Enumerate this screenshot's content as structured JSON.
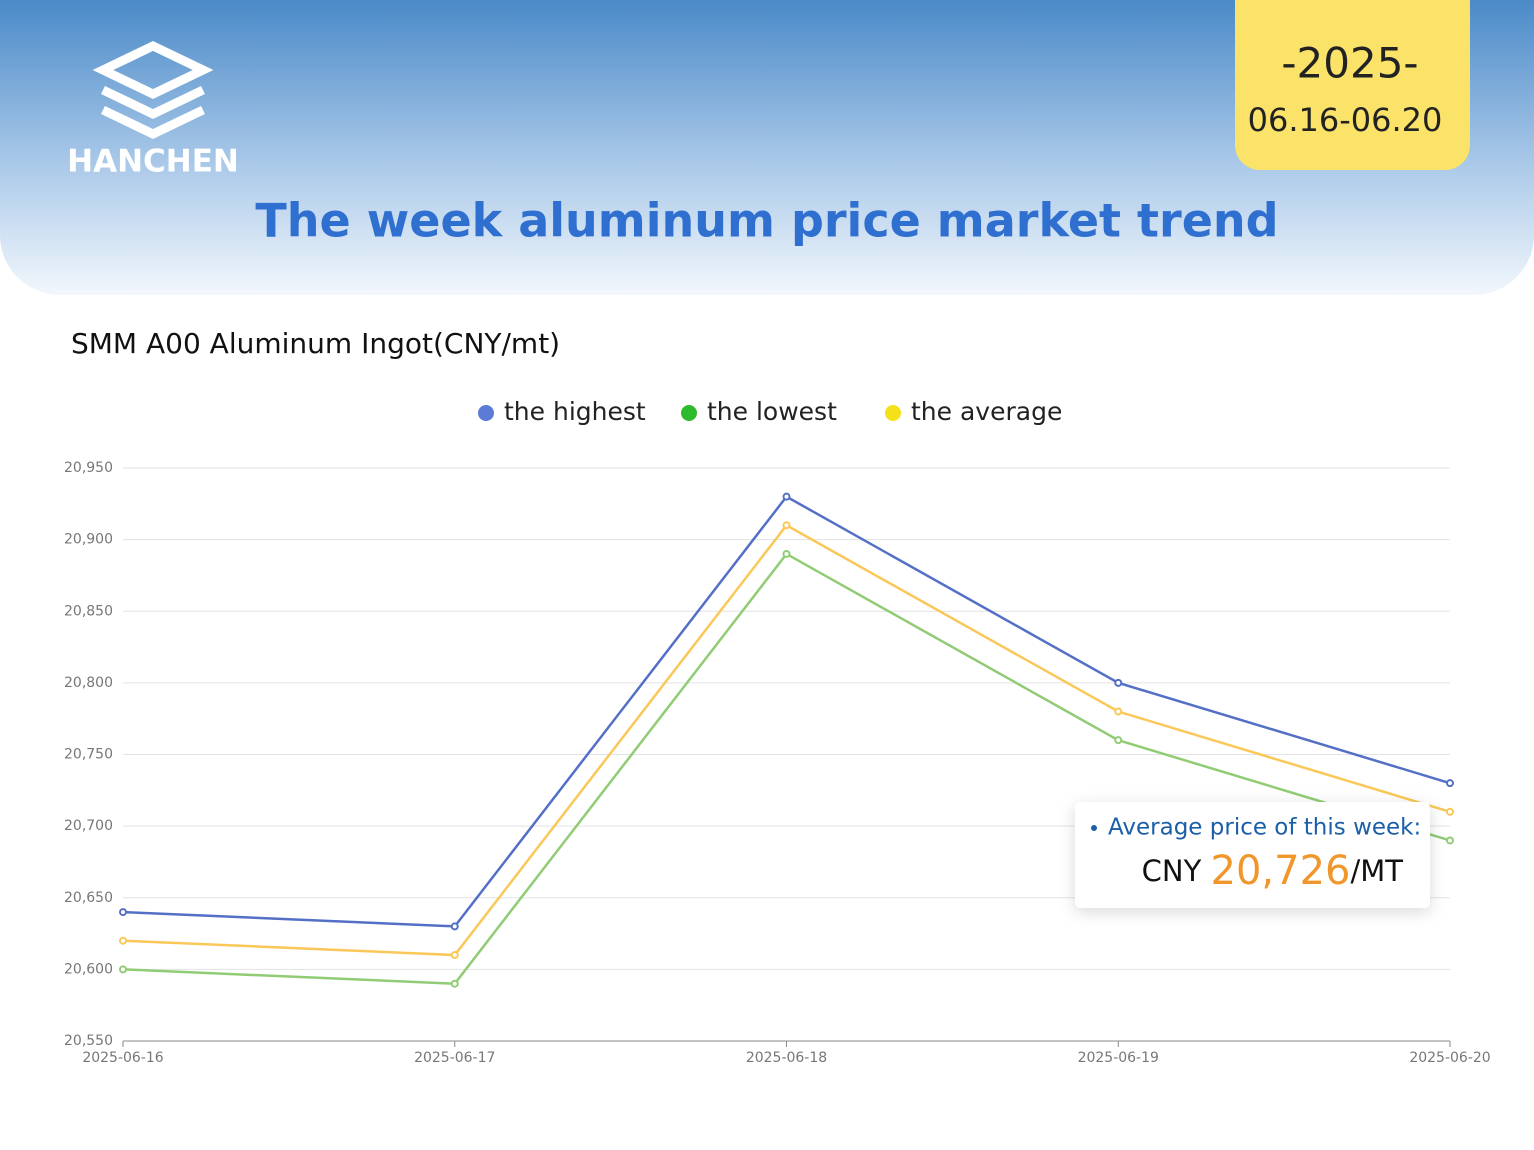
{
  "logo": "HANCHEN",
  "year": "-2025-",
  "date_range": "06.16-06.20",
  "headline": "The week aluminum price market trend",
  "callout": {
    "label": "Average price of this week:",
    "currency": "CNY",
    "price": "20,726",
    "unit": "/MT"
  },
  "chart_data": {
    "type": "line",
    "title": "SMM A00 Aluminum Ingot(CNY/mt)",
    "categories": [
      "2025-06-16",
      "2025-06-17",
      "2025-06-18",
      "2025-06-19",
      "2025-06-20"
    ],
    "series": [
      {
        "name": "the highest",
        "color": "#5470c6",
        "legend_color": "#5b7bd5",
        "values": [
          20640,
          20630,
          20930,
          20800,
          20730
        ]
      },
      {
        "name": "the lowest",
        "color": "#91cc75",
        "legend_color": "#2dbb2d",
        "values": [
          20600,
          20590,
          20890,
          20760,
          20690
        ]
      },
      {
        "name": "the average",
        "color": "#fac858",
        "legend_color": "#f5e11a",
        "values": [
          20620,
          20610,
          20910,
          20780,
          20710
        ]
      }
    ],
    "ylim": [
      20550,
      20950
    ],
    "yticks": [
      {
        "value": 20550,
        "label": "20,550"
      },
      {
        "value": 20600,
        "label": "20,600"
      },
      {
        "value": 20650,
        "label": "20,650"
      },
      {
        "value": 20700,
        "label": "20,700"
      },
      {
        "value": 20750,
        "label": "20,750"
      },
      {
        "value": 20800,
        "label": "20,800"
      },
      {
        "value": 20850,
        "label": "20,850"
      },
      {
        "value": 20900,
        "label": "20,900"
      },
      {
        "value": 20950,
        "label": "20,950"
      }
    ],
    "grid": true,
    "legend": "top"
  }
}
